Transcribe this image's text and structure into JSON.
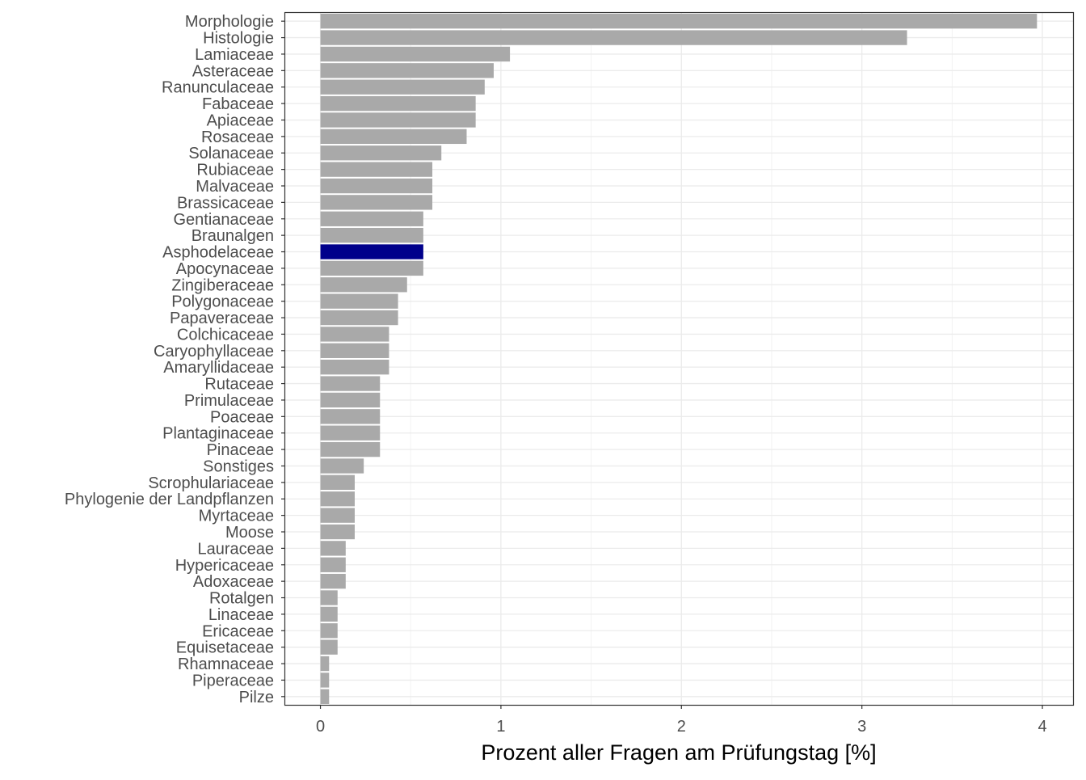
{
  "chart_data": {
    "type": "bar",
    "orientation": "horizontal",
    "title": "",
    "xlabel": "Prozent aller Fragen am Prüfungstag [%]",
    "ylabel": "",
    "xlim": [
      -0.195,
      4.17
    ],
    "xticks": [
      "0",
      "1",
      "2",
      "3",
      "4"
    ],
    "grid": true,
    "legend": "none",
    "categories": [
      "Morphologie",
      "Histologie",
      "Lamiaceae",
      "Asteraceae",
      "Ranunculaceae",
      "Fabaceae",
      "Apiaceae",
      "Rosaceae",
      "Solanaceae",
      "Rubiaceae",
      "Malvaceae",
      "Brassicaceae",
      "Gentianaceae",
      "Braunalgen",
      "Asphodelaceae",
      "Apocynaceae",
      "Zingiberaceae",
      "Polygonaceae",
      "Papaveraceae",
      "Colchicaceae",
      "Caryophyllaceae",
      "Amaryllidaceae",
      "Rutaceae",
      "Primulaceae",
      "Poaceae",
      "Plantaginaceae",
      "Pinaceae",
      "Sonstiges",
      "Scrophulariaceae",
      "Phylogenie der Landpflanzen",
      "Myrtaceae",
      "Moose",
      "Lauraceae",
      "Hypericaceae",
      "Adoxaceae",
      "Rotalgen",
      "Linaceae",
      "Ericaceae",
      "Equisetaceae",
      "Rhamnaceae",
      "Piperaceae",
      "Pilze"
    ],
    "values": [
      3.97,
      3.25,
      1.05,
      0.96,
      0.91,
      0.86,
      0.86,
      0.81,
      0.67,
      0.62,
      0.62,
      0.62,
      0.57,
      0.57,
      0.57,
      0.57,
      0.48,
      0.43,
      0.43,
      0.38,
      0.38,
      0.38,
      0.33,
      0.33,
      0.33,
      0.33,
      0.33,
      0.24,
      0.19,
      0.19,
      0.19,
      0.19,
      0.14,
      0.14,
      0.14,
      0.095,
      0.095,
      0.095,
      0.095,
      0.048,
      0.048,
      0.048
    ],
    "highlight": "Asphodelaceae",
    "colors": {
      "bar": "#a9a9a9",
      "highlight": "#00008b",
      "grid_major": "#ebebeb",
      "grid_minor": "#f2f2f2",
      "panel_border": "#333333",
      "tick_text": "#4d4d4d"
    }
  }
}
